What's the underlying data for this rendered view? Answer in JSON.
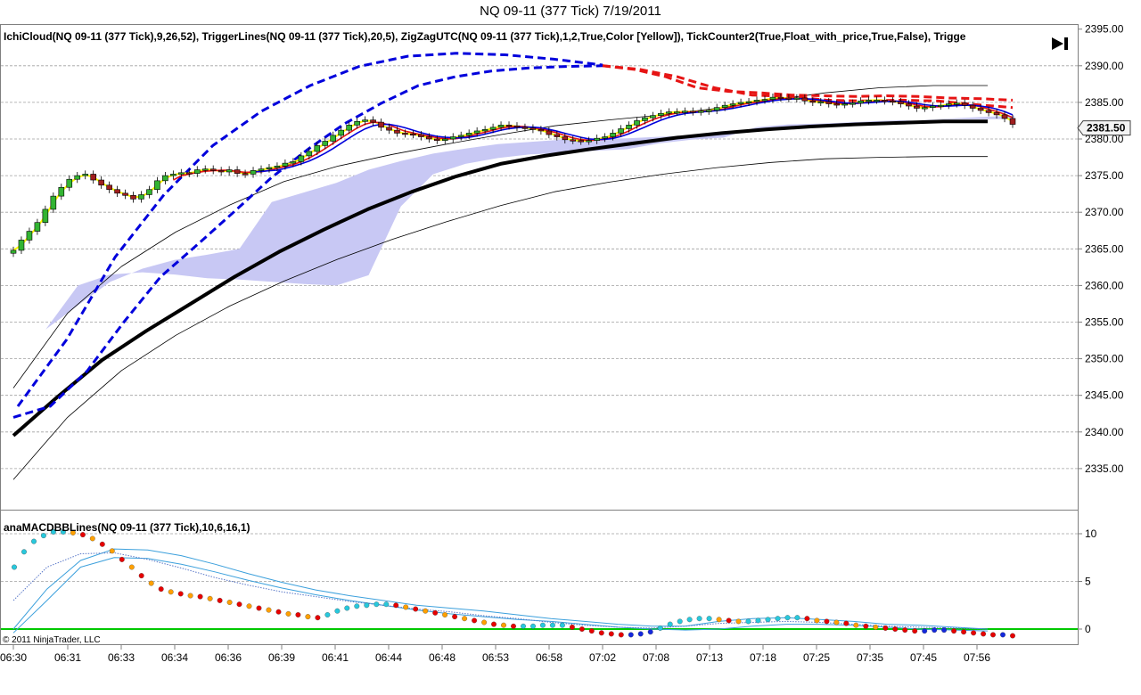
{
  "window": {
    "title": "NQ 09-11 (377 Tick)  7/19/2011"
  },
  "price_panel": {
    "indicators": "IchiCloud(NQ 09-11 (377 Tick),9,26,52),  TriggerLines(NQ 09-11 (377 Tick),20,5),  ZigZagUTC(NQ 09-11 (377 Tick),1,2,True,Color [Yellow]),  TickCounter2(True,Float_with_price,True,False),  Trigge",
    "last_price": "2381.50",
    "y_ticks": [
      "2395.00",
      "2390.00",
      "2385.00",
      "2380.00",
      "2375.00",
      "2370.00",
      "2365.00",
      "2360.00",
      "2355.00",
      "2350.00",
      "2345.00",
      "2340.00",
      "2335.00"
    ],
    "play_icon": "skip-forward-icon"
  },
  "lower_panel": {
    "indicator": "anaMACDBBLines(NQ 09-11 (377 Tick),10,6,16,1)",
    "y_ticks": [
      "10",
      "5",
      "0"
    ],
    "copyright": "© 2011 NinjaTrader, LLC"
  },
  "x_ticks": [
    "06:30",
    "06:31",
    "06:33",
    "06:34",
    "06:36",
    "06:39",
    "06:41",
    "06:44",
    "06:48",
    "06:53",
    "06:58",
    "07:02",
    "07:08",
    "07:13",
    "07:18",
    "07:25",
    "07:35",
    "07:45",
    "07:56"
  ],
  "colors": {
    "cloud": "#c8c8f4",
    "candle_up": "#32b432",
    "candle_down": "#a01e1e",
    "slow_ma": "#000000",
    "trigger_blue": "#0000dc",
    "trigger_red": "#e61414",
    "zigzag": "#ffff00",
    "macd_zero": "#00c800",
    "dot_red": "#e60000",
    "dot_orange": "#ffa000",
    "dot_cyan": "#28c8dc",
    "dot_blue": "#1428dc"
  },
  "chart_data": [
    {
      "type": "candlestick",
      "title": "NQ 09-11 (377 Tick)  7/19/2011",
      "x_labels": [
        "06:30",
        "06:31",
        "06:33",
        "06:34",
        "06:36",
        "06:39",
        "06:41",
        "06:44",
        "06:48",
        "06:53",
        "06:58",
        "07:02",
        "07:08",
        "07:13",
        "07:18",
        "07:25",
        "07:35",
        "07:45",
        "07:56"
      ],
      "ylim": [
        2331,
        2396
      ],
      "last_price": 2381.5,
      "close": [
        2364.8,
        2366.2,
        2367.4,
        2368.6,
        2370.4,
        2372.2,
        2373.4,
        2374.5,
        2375.0,
        2375.2,
        2374.4,
        2373.7,
        2373.1,
        2372.6,
        2372.3,
        2371.8,
        2372.4,
        2373.1,
        2374.3,
        2375.0,
        2375.2,
        2375.4,
        2375.3,
        2375.8,
        2375.9,
        2375.7,
        2375.5,
        2375.8,
        2375.3,
        2375.2,
        2375.7,
        2375.9,
        2376.1,
        2376.3,
        2376.7,
        2376.9,
        2377.7,
        2378.3,
        2379.1,
        2379.7,
        2380.5,
        2381.2,
        2381.9,
        2382.4,
        2382.6,
        2382.3,
        2381.6,
        2381.2,
        2380.8,
        2380.7,
        2380.6,
        2380.3,
        2380.0,
        2379.8,
        2380.0,
        2380.3,
        2380.5,
        2380.8,
        2381.1,
        2381.3,
        2381.6,
        2381.9,
        2381.8,
        2381.6,
        2381.5,
        2381.3,
        2381.1,
        2380.6,
        2380.3,
        2379.9,
        2379.8,
        2379.7,
        2379.8,
        2380.1,
        2380.3,
        2380.8,
        2381.4,
        2381.9,
        2382.5,
        2382.9,
        2383.2,
        2383.5,
        2383.7,
        2383.7,
        2383.8,
        2383.7,
        2383.8,
        2383.9,
        2384.3,
        2384.6,
        2384.8,
        2385.0,
        2385.1,
        2385.3,
        2385.4,
        2385.7,
        2385.6,
        2385.5,
        2385.6,
        2385.2,
        2385.0,
        2385.1,
        2384.8,
        2384.7,
        2384.8,
        2384.9,
        2385.2,
        2385.3,
        2385.3,
        2385.2,
        2385.1,
        2384.8,
        2384.5,
        2384.2,
        2384.3,
        2384.5,
        2384.6,
        2384.8,
        2384.9,
        2384.6,
        2384.2,
        2383.9,
        2383.6,
        2383.3,
        2382.8,
        2382.0
      ],
      "series": [
        {
          "name": "IchiCloud span A",
          "values": [
            2350.5,
            2354.0,
            2357.3,
            2360.5,
            2362.3,
            2363.5,
            2364.2,
            2365.0,
            2371.4,
            2372.7,
            2374.0,
            2375.8,
            2377.0,
            2378.0,
            2378.7,
            2379.3,
            2379.6,
            2379.9,
            2380.0,
            2380.1,
            2380.3,
            2380.5,
            2380.8,
            2381.1,
            2381.4,
            2381.7,
            2382.0,
            2382.3,
            2382.6,
            2382.8,
            2383.0,
            2383.2
          ]
        },
        {
          "name": "IchiCloud span B",
          "values": [
            2350.5,
            2354.0,
            2360.0,
            2361.5,
            2361.8,
            2361.5,
            2361.0,
            2360.8,
            2360.5,
            2360.2,
            2360.0,
            2361.4,
            2370.8,
            2375.2,
            2376.6,
            2377.4,
            2377.9,
            2378.1,
            2378.4,
            2378.6,
            2379.4,
            2379.9,
            2380.2,
            2381.6,
            2382.0,
            2382.1,
            2382.3,
            2382.5,
            2382.6,
            2382.7,
            2382.7,
            2382.7
          ]
        },
        {
          "name": "Slow moving average (thick black)",
          "values": [
            2339.5,
            2344.8,
            2349.8,
            2353.8,
            2357.5,
            2361.2,
            2364.6,
            2367.6,
            2370.4,
            2372.8,
            2374.9,
            2376.6,
            2377.7,
            2378.6,
            2379.4,
            2380.2,
            2380.8,
            2381.3,
            2381.7,
            2382.0,
            2382.2,
            2382.4,
            2382.4
          ]
        },
        {
          "name": "Lower envelope (thin black)",
          "values": [
            2333.5,
            2342.0,
            2348.4,
            2353.2,
            2357.2,
            2360.6,
            2363.6,
            2366.3,
            2368.7,
            2370.9,
            2372.8,
            2374.1,
            2375.2,
            2376.1,
            2376.8,
            2377.3,
            2377.5,
            2377.6,
            2377.6
          ]
        },
        {
          "name": "Upper envelope (thin black)",
          "values": [
            2346.0,
            2356.2,
            2362.6,
            2367.3,
            2371.0,
            2374.2,
            2376.3,
            2377.9,
            2379.3,
            2380.6,
            2381.8,
            2382.6,
            2383.3,
            2384.2,
            2385.3,
            2386.3,
            2387.0,
            2387.3,
            2387.3
          ]
        },
        {
          "name": "Trigger line (dashed blue)",
          "values": [
            2342.0,
            2343.5,
            2348.3,
            2355.0,
            2361.2,
            2365.6,
            2370.1,
            2374.7,
            2378.6,
            2382.1,
            2384.9,
            2387.3,
            2388.5,
            2389.3,
            2389.7,
            2389.9,
            2390.0
          ]
        },
        {
          "name": "Trigger line (upper dashed blue)",
          "values": [
            2343.5,
            2352.6,
            2363.9,
            2372.4,
            2379.1,
            2383.8,
            2387.3,
            2389.9,
            2391.3,
            2391.7,
            2391.5,
            2390.9,
            2390.1
          ]
        },
        {
          "name": "Trigger line (dashed red)",
          "values": [
            2390.0,
            2389.5,
            2388.5,
            2387.0,
            2386.5,
            2386.3,
            2386.0,
            2385.9,
            2385.8,
            2385.9,
            2385.8,
            2385.6,
            2385.5,
            2385.3
          ]
        },
        {
          "name": "Trigger line (lower dashed red)",
          "values": [
            2390.0,
            2389.5,
            2388.5,
            2387.0,
            2386.0,
            2385.8,
            2385.3,
            2385.2,
            2385.3,
            2385.2,
            2384.7,
            2384.3
          ]
        }
      ]
    },
    {
      "type": "line",
      "title": "anaMACDBBLines(NQ 09-11 (377 Tick),10,6,16,1)",
      "ylim": [
        -1,
        12
      ],
      "y_ticks": [
        10,
        5,
        0
      ],
      "series": [
        {
          "name": "MACD dots",
          "values": [
            6.5,
            8.1,
            9.2,
            9.8,
            10.2,
            10.2,
            10.1,
            9.9,
            9.5,
            8.9,
            8.2,
            7.3,
            6.5,
            5.6,
            4.8,
            4.2,
            3.9,
            3.7,
            3.5,
            3.4,
            3.2,
            3.0,
            2.8,
            2.6,
            2.4,
            2.2,
            2.0,
            1.8,
            1.6,
            1.5,
            1.3,
            1.2,
            1.5,
            1.9,
            2.2,
            2.4,
            2.5,
            2.6,
            2.6,
            2.5,
            2.3,
            2.1,
            1.9,
            1.7,
            1.5,
            1.3,
            1.1,
            0.9,
            0.7,
            0.5,
            0.4,
            0.3,
            0.3,
            0.3,
            0.4,
            0.4,
            0.4,
            0.2,
            0.0,
            -0.2,
            -0.4,
            -0.5,
            -0.6,
            -0.6,
            -0.5,
            -0.3,
            0.1,
            0.5,
            0.8,
            1.0,
            1.1,
            1.1,
            1.0,
            0.9,
            0.8,
            0.8,
            0.9,
            1.0,
            1.1,
            1.2,
            1.2,
            1.1,
            0.9,
            0.8,
            0.7,
            0.6,
            0.4,
            0.3,
            0.2,
            0.1,
            0.0,
            -0.1,
            -0.2,
            -0.2,
            -0.1,
            -0.1,
            -0.2,
            -0.3,
            -0.4,
            -0.5,
            -0.6,
            -0.6,
            -0.7
          ]
        },
        {
          "name": "Upper band",
          "values": [
            0.0,
            4.2,
            7.2,
            8.4,
            8.3,
            7.7,
            6.8,
            5.8,
            4.9,
            4.1,
            3.5,
            3.0,
            2.5,
            2.2,
            1.9,
            1.5,
            1.1,
            0.8,
            0.5,
            0.3,
            0.3,
            0.8,
            1.1,
            1.2,
            1.0,
            0.8,
            0.5,
            0.4,
            0.2,
            0.0
          ]
        },
        {
          "name": "Lower band",
          "values": [
            -0.4,
            3.0,
            6.5,
            7.5,
            7.4,
            6.8,
            6.0,
            5.1,
            4.3,
            3.6,
            3.0,
            2.5,
            2.0,
            1.6,
            1.3,
            1.0,
            0.8,
            0.5,
            0.2,
            0.0,
            -0.1,
            0.0,
            0.3,
            0.5,
            0.5,
            0.4,
            0.2,
            0.0,
            -0.1,
            -0.2
          ]
        },
        {
          "name": "Average band",
          "values": [
            3.0,
            6.5,
            7.9,
            8.0,
            7.3,
            6.4,
            5.4,
            4.6,
            3.9,
            3.4,
            2.9,
            2.5,
            2.1,
            1.8,
            1.4,
            1.1,
            0.7,
            0.4,
            0.2,
            0.1,
            0.3,
            0.6,
            0.7,
            0.8,
            0.7,
            0.5,
            0.3,
            0.2,
            0.1,
            0.0
          ]
        },
        {
          "name": "Zero line",
          "values": [
            0.0,
            0.0
          ]
        }
      ]
    }
  ]
}
